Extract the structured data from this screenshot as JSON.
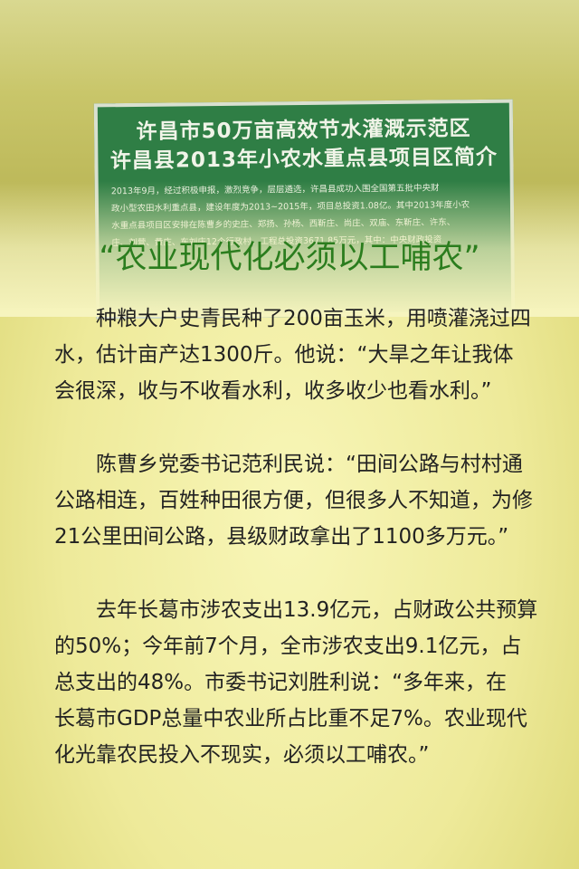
{
  "sign": {
    "title_lines": [
      "许昌市50万亩高效节水灌溉示范区",
      "许昌县2013年小农水重点县项目区简介"
    ],
    "body_lines": [
      "2013年9月，经过积极申报，激烈竞争，层层遴选，许昌县成功入围全国第五批中央财",
      "政小型农田水利重点县，建设年度为2013~2015年，项目总投资1.08亿。其中2013年度小农",
      "水重点县项目区安排在陈曹乡的史庄、郑扬、孙杨、西靳庄、尚庄、双庙、东靳庄、许东、",
      "庄、刘营、黄庄、东刘庄12个行政村，工程总投资3671.85万元，其中：中央财政投资"
    ]
  },
  "headline": "“农业现代化必须以工哺农”",
  "paragraphs": [
    [
      "种粮大户史青民种了200亩玉米，用喷灌浇过四",
      "水，估计亩产达1300斤。他说：“大旱之年让我体",
      "会很深，收与不收看水利，收多收少也看水利。”"
    ],
    [
      "陈曹乡党委书记范利民说：“田间公路与村村通",
      "公路相连，百姓种田很方便，但很多人不知道，为修",
      "21公里田间公路，县级财政拿出了1100多万元。”"
    ],
    [
      "去年长葛市涉农支出13.9亿元，占财政公共预算",
      "的50%；今年前7个月，全市涉农支出9.1亿元，占",
      "总支出的48%。市委书记刘胜利说：“多年来，在",
      "长葛市GDP总量中农业所占比重不足7%。农业现代",
      "化光靠农民投入不现实，必须以工哺农。”"
    ]
  ]
}
